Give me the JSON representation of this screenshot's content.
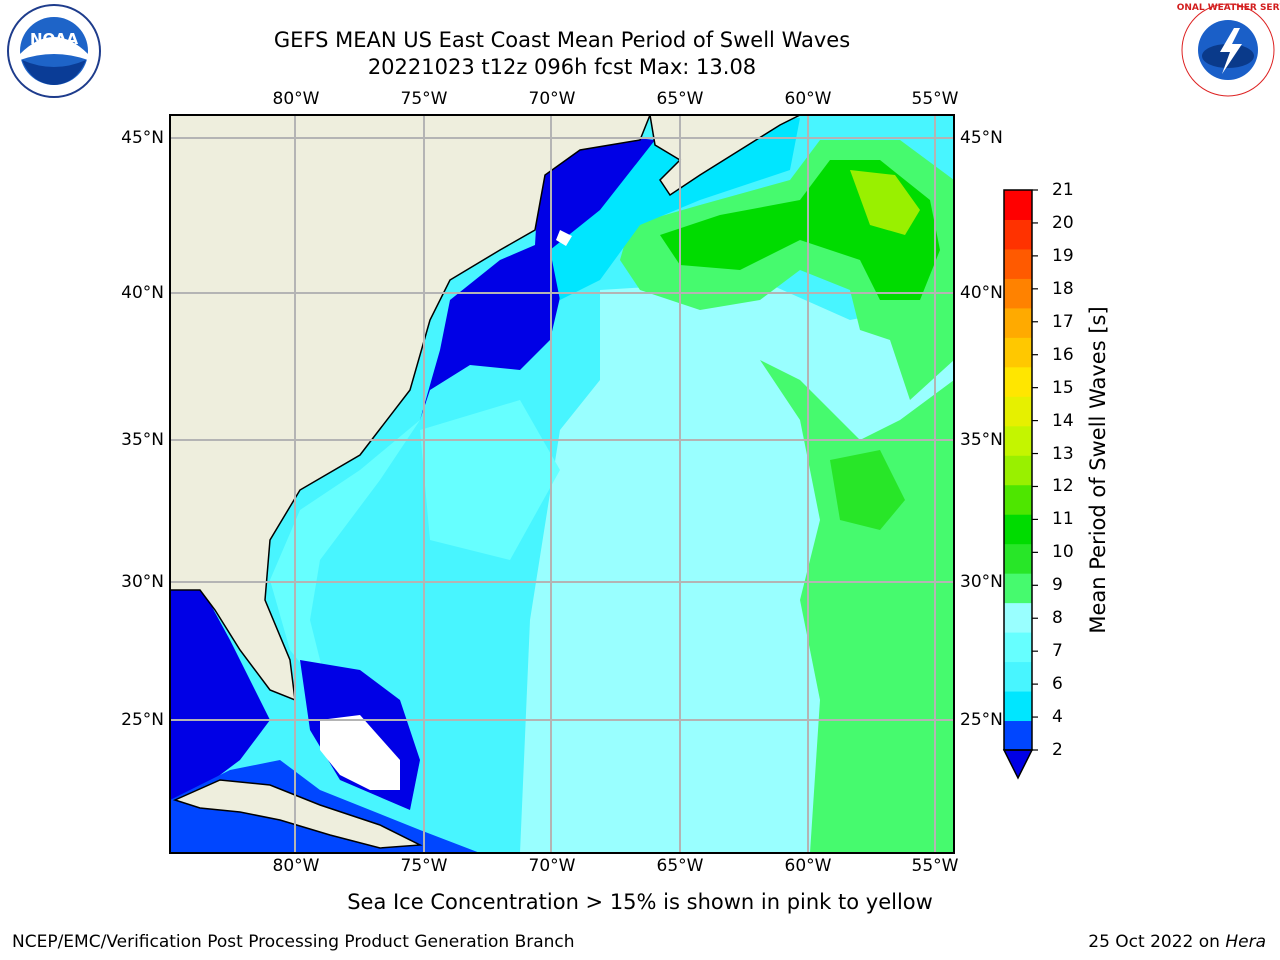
{
  "title": {
    "line1": "GEFS MEAN US East Coast Mean Period of Swell Waves",
    "line2": "20221023 t12z 096h fcst   Max: 13.08"
  },
  "logos": {
    "noaa_text": "NOAA",
    "nws_text": "NATIONAL WEATHER SERVICE"
  },
  "map": {
    "lon_labels": [
      "80°W",
      "75°W",
      "70°W",
      "65°W",
      "60°W",
      "55°W"
    ],
    "lat_labels": [
      "45°N",
      "40°N",
      "35°N",
      "30°N",
      "25°N"
    ],
    "land_color": "#eeeedd",
    "grid_color": "#b4b4b4"
  },
  "colorbar": {
    "title": "Mean Period of Swell Waves [s]",
    "ticks": [
      "2",
      "4",
      "6",
      "7",
      "8",
      "9",
      "10",
      "11",
      "12",
      "13",
      "14",
      "15",
      "16",
      "17",
      "18",
      "19",
      "20",
      "21"
    ],
    "colors": [
      "#0046ff",
      "#00e6ff",
      "#48f5ff",
      "#66ffff",
      "#99ffff",
      "#46fa6e",
      "#28e628",
      "#00dc00",
      "#4ee600",
      "#99f000",
      "#c4f500",
      "#e6f000",
      "#ffe600",
      "#ffc800",
      "#ffaa00",
      "#ff8200",
      "#ff5a00",
      "#ff3200",
      "#ff0000"
    ],
    "extend_color": "#0000e6"
  },
  "subtitle": "Sea Ice Concentration > 15% is shown in pink to yellow",
  "footer": {
    "left": "NCEP/EMC/Verification Post Processing Product Generation Branch",
    "right_prefix": "25 Oct 2022 on ",
    "right_italic": "Hera"
  }
}
